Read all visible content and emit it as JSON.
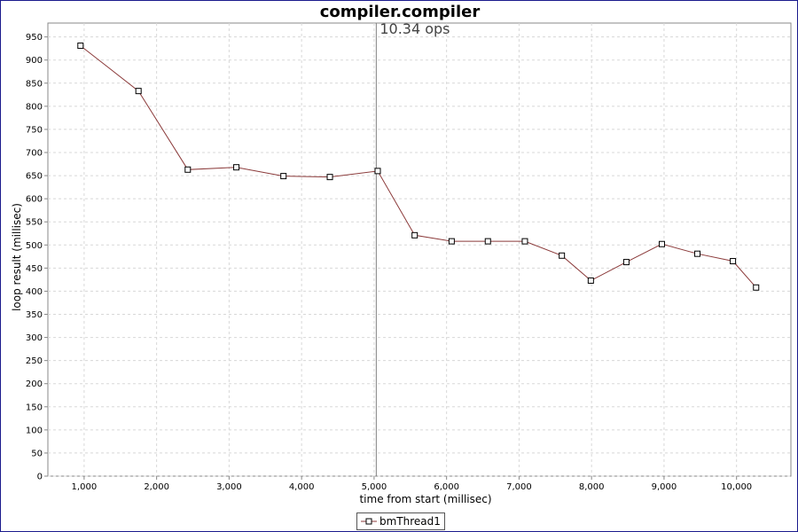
{
  "chart_data": {
    "type": "line",
    "title": "compiler.compiler",
    "xlabel": "time from start (millisec)",
    "ylabel": "loop result (millisec)",
    "xlim": [
      500,
      10750
    ],
    "ylim": [
      0,
      980
    ],
    "x_ticks": [
      "1,000",
      "2,000",
      "3,000",
      "4,000",
      "5,000",
      "6,000",
      "7,000",
      "8,000",
      "9,000",
      "10,000"
    ],
    "y_ticks": [
      "0",
      "50",
      "100",
      "150",
      "200",
      "250",
      "300",
      "350",
      "400",
      "450",
      "500",
      "550",
      "600",
      "650",
      "700",
      "750",
      "800",
      "850",
      "900",
      "950"
    ],
    "grid": true,
    "legend_position": "bottom",
    "annotation": {
      "text": "10.34 ops",
      "x": 5030
    },
    "series": [
      {
        "name": "bmThread1",
        "color": "#8b3a3a",
        "marker": "square",
        "x": [
          950,
          1750,
          2430,
          3100,
          3750,
          4390,
          5050,
          5560,
          6070,
          6570,
          7080,
          7590,
          7990,
          8480,
          8970,
          9460,
          9950,
          10270
        ],
        "y": [
          931,
          833,
          663,
          668,
          649,
          647,
          660,
          521,
          508,
          508,
          508,
          477,
          423,
          463,
          502,
          481,
          465,
          408
        ]
      }
    ]
  }
}
